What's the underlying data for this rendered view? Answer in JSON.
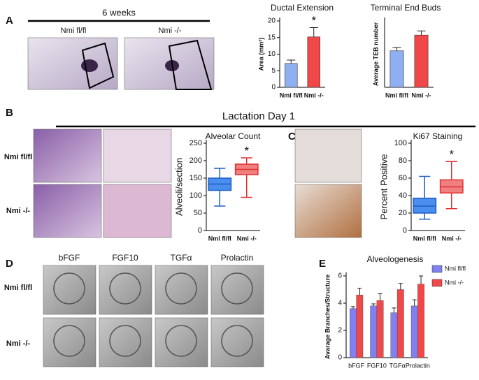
{
  "figure": {
    "panels": [
      "A",
      "B",
      "C",
      "D",
      "E"
    ],
    "weeks_label": "6 weeks",
    "lactation_label": "Lactation Day 1",
    "genotypes": [
      "Nmi fl/fl",
      "Nmi -/-"
    ],
    "conditions": [
      "bFGF",
      "FGF10",
      "TGFα",
      "Prolactin"
    ]
  },
  "chart_data": [
    {
      "type": "bar",
      "title": "Ductal Extension",
      "y_label": "Area (mm²)",
      "categories": [
        "Nmi fl/fl",
        "Nmi -/-"
      ],
      "values": [
        7.2,
        15.2
      ],
      "errors": [
        1.0,
        2.8
      ],
      "colors": [
        "#8fb0f0",
        "#f04848"
      ],
      "ylim": [
        0,
        20
      ],
      "yticks": [
        0,
        5,
        10,
        15,
        20
      ],
      "annotation": "*"
    },
    {
      "type": "bar",
      "title": "Terminal End Buds",
      "y_label": "Average TEB number",
      "categories": [
        "Nmi fl/fl",
        "Nmi -/-"
      ],
      "values": [
        44,
        63
      ],
      "errors": [
        4,
        5
      ],
      "colors": [
        "#8fb0f0",
        "#f04848"
      ],
      "ylim": [
        0,
        80
      ]
    },
    {
      "type": "box",
      "title": "Alveolar  Count",
      "y_label": "Alveoli/section",
      "categories": [
        "Nmi fl/fl",
        "Nmi -/-"
      ],
      "min": [
        70,
        95
      ],
      "q1": [
        115,
        160
      ],
      "median": [
        133,
        175
      ],
      "q3": [
        150,
        190
      ],
      "max": [
        178,
        208
      ],
      "colors": [
        "#4a8ef0",
        "#f08080"
      ],
      "edge_colors": [
        "#1f5fc0",
        "#e03030"
      ],
      "ylim": [
        0,
        250
      ],
      "yticks": [
        0,
        50,
        100,
        150,
        200,
        250
      ],
      "annotation": "*"
    },
    {
      "type": "box",
      "title": "Ki67 Staining",
      "y_label": "Percent Positive",
      "categories": [
        "Nmi fl/fl",
        "Nmi -/-"
      ],
      "min": [
        13,
        25
      ],
      "q1": [
        20,
        43
      ],
      "median": [
        28,
        50
      ],
      "q3": [
        37,
        58
      ],
      "max": [
        62,
        79
      ],
      "colors": [
        "#4a8ef0",
        "#f08080"
      ],
      "edge_colors": [
        "#1f5fc0",
        "#e03030"
      ],
      "ylim": [
        0,
        100
      ],
      "yticks": [
        0,
        20,
        40,
        60,
        80,
        100
      ],
      "annotation": "*"
    },
    {
      "type": "grouped_bar",
      "title": "Alveologenesis",
      "y_label": "Avarage Branches/Structure",
      "categories": [
        "bFGF",
        "FGF10",
        "TGFα",
        "Prolactin"
      ],
      "series": [
        {
          "name": "Nmi fl/fl",
          "color": "#8080f0",
          "values": [
            3.6,
            3.8,
            3.3,
            3.8
          ],
          "errors": [
            0.15,
            0.15,
            0.35,
            0.45
          ]
        },
        {
          "name": "Nmi -/-",
          "color": "#f04848",
          "values": [
            4.6,
            4.2,
            5.0,
            5.4
          ],
          "errors": [
            0.5,
            0.5,
            0.45,
            0.6
          ]
        }
      ],
      "ylim": [
        0,
        6
      ],
      "yticks": [
        0,
        2,
        4,
        6
      ]
    }
  ]
}
